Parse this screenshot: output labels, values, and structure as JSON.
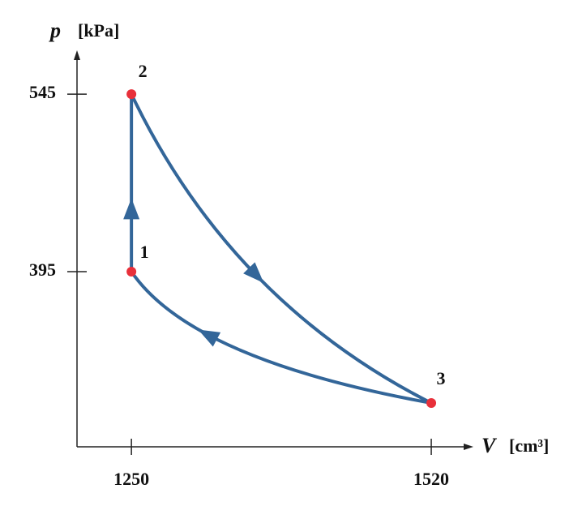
{
  "chart_data": {
    "type": "scatter",
    "x_label": "V",
    "x_unit": "[cm³]",
    "y_label": "p",
    "y_unit": "[kPa]",
    "x": [
      1250,
      1250,
      1520
    ],
    "values": [
      395,
      545,
      284
    ],
    "labels": [
      "1",
      "2",
      "3"
    ],
    "color": "#e8303a",
    "line_color": "#336699",
    "xlim": [
      1201,
      1555
    ],
    "ylim": [
      247,
      580
    ],
    "xticks": [
      1250,
      1520
    ],
    "yticks": [
      395,
      545
    ],
    "grid": false
  }
}
